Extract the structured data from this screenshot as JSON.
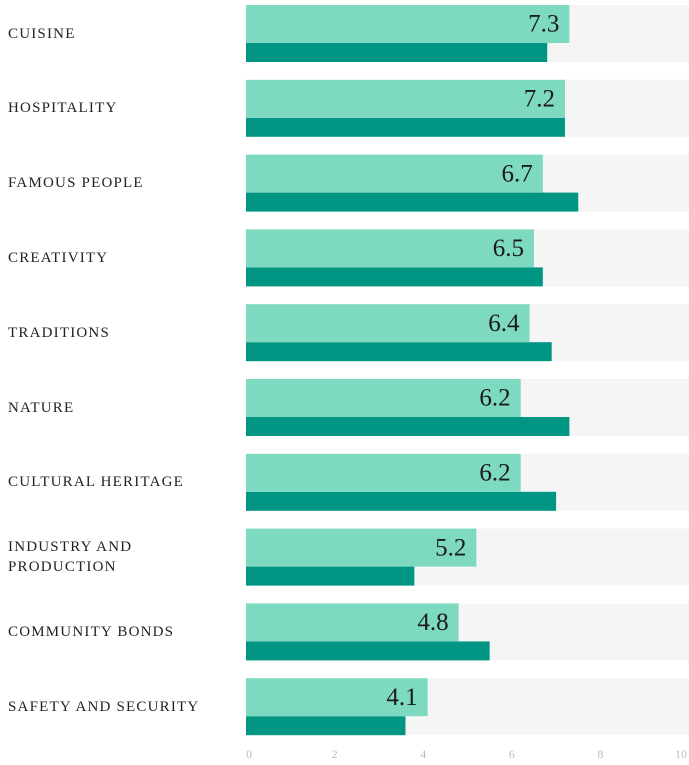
{
  "chart_data": {
    "type": "bar",
    "categories": [
      "CUISINE",
      "HOSPITALITY",
      "FAMOUS PEOPLE",
      "CREATIVITY",
      "TRADITIONS",
      "NATURE",
      "CULTURAL HERITAGE",
      "INDUSTRY AND PRODUCTION",
      "COMMUNITY BONDS",
      "SAFETY AND SECURITY"
    ],
    "series": [
      {
        "color": "#7dd9c0",
        "values": [
          7.3,
          7.2,
          6.7,
          6.5,
          6.4,
          6.2,
          6.2,
          5.2,
          4.8,
          4.1
        ]
      },
      {
        "color": "#009683",
        "values": [
          6.8,
          7.2,
          7.5,
          6.7,
          6.9,
          7.3,
          7.0,
          3.8,
          5.5,
          3.6
        ]
      }
    ],
    "xlim": [
      0,
      10
    ],
    "xticks": [
      0,
      2,
      4,
      6,
      8,
      10
    ],
    "track_color": "#f5f5f5"
  }
}
